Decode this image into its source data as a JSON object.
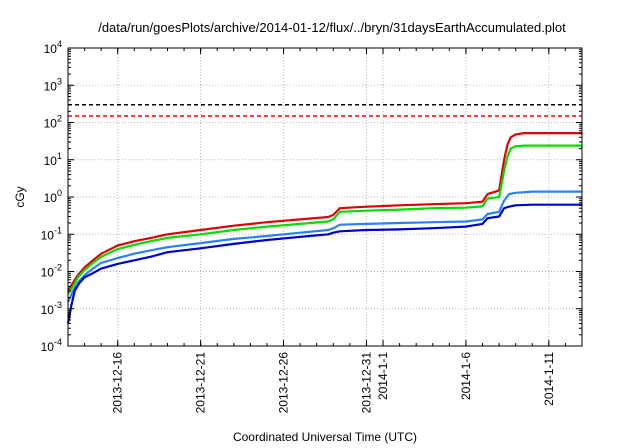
{
  "chart_data": {
    "type": "line",
    "title": "/data/run/goesPlots/archive/2014-01-12/flux/../bryn/31daysEarthAccumulated.plot",
    "xlabel": "Coordinated Universal Time (UTC)",
    "ylabel": "cGy",
    "yscale": "log",
    "ylim": [
      0.0001,
      10000
    ],
    "xlim_days": [
      0,
      31
    ],
    "grid": true,
    "y_ticks": [
      {
        "mantissa": "10",
        "exp": "-4",
        "value": 0.0001
      },
      {
        "mantissa": "10",
        "exp": "-3",
        "value": 0.001
      },
      {
        "mantissa": "10",
        "exp": "-2",
        "value": 0.01
      },
      {
        "mantissa": "10",
        "exp": "-1",
        "value": 0.1
      },
      {
        "mantissa": "10",
        "exp": "0",
        "value": 1
      },
      {
        "mantissa": "10",
        "exp": "1",
        "value": 10
      },
      {
        "mantissa": "10",
        "exp": "2",
        "value": 100
      },
      {
        "mantissa": "10",
        "exp": "3",
        "value": 1000
      },
      {
        "mantissa": "10",
        "exp": "4",
        "value": 10000
      }
    ],
    "x_ticks": [
      {
        "label": "2013-12-16",
        "day": 3
      },
      {
        "label": "2013-12-21",
        "day": 8
      },
      {
        "label": "2013-12-26",
        "day": 13
      },
      {
        "label": "2013-12-31",
        "day": 18
      },
      {
        "label": "2014-1-1",
        "day": 19
      },
      {
        "label": "2014-1-6",
        "day": 24
      },
      {
        "label": "2014-1-11",
        "day": 29
      }
    ],
    "reference_lines": [
      {
        "name": "black-threshold",
        "value": 300,
        "color": "#000000"
      },
      {
        "name": "red-threshold",
        "value": 150,
        "color": "#ff0000"
      }
    ],
    "series": [
      {
        "name": "red",
        "color": "#e00000",
        "x": [
          0,
          0.3,
          0.6,
          1,
          1.5,
          2,
          3,
          4,
          5,
          6,
          8,
          10,
          12,
          14,
          15.7,
          16,
          16.4,
          18,
          20,
          22,
          24,
          25,
          25.3,
          26,
          26.3,
          26.5,
          26.7,
          27,
          27.5,
          28,
          31
        ],
        "values": [
          0.003,
          0.005,
          0.008,
          0.013,
          0.02,
          0.03,
          0.05,
          0.065,
          0.08,
          0.1,
          0.13,
          0.17,
          0.21,
          0.25,
          0.29,
          0.33,
          0.5,
          0.55,
          0.6,
          0.64,
          0.68,
          0.75,
          1.2,
          1.5,
          10,
          25,
          40,
          48,
          52,
          52,
          52
        ]
      },
      {
        "name": "green",
        "color": "#00dd00",
        "x": [
          0,
          0.3,
          0.6,
          1,
          1.5,
          2,
          3,
          4,
          5,
          6,
          8,
          10,
          12,
          14,
          15.7,
          16,
          16.4,
          18,
          20,
          22,
          24,
          25,
          25.3,
          26,
          26.3,
          26.5,
          26.7,
          27,
          27.5,
          28,
          31
        ],
        "values": [
          0.0025,
          0.004,
          0.007,
          0.011,
          0.017,
          0.025,
          0.04,
          0.052,
          0.065,
          0.08,
          0.1,
          0.13,
          0.16,
          0.19,
          0.22,
          0.25,
          0.4,
          0.43,
          0.46,
          0.5,
          0.52,
          0.56,
          0.9,
          1.0,
          5,
          12,
          20,
          23,
          24,
          24,
          24
        ]
      },
      {
        "name": "light-blue",
        "color": "#2a7fff",
        "x": [
          0,
          0.3,
          0.6,
          1,
          1.5,
          2,
          3,
          4,
          5,
          6,
          8,
          10,
          12,
          14,
          15.7,
          16,
          16.4,
          18,
          20,
          22,
          24,
          25,
          25.3,
          26,
          26.3,
          26.6,
          27,
          28,
          31
        ],
        "values": [
          0.0015,
          0.003,
          0.005,
          0.008,
          0.012,
          0.017,
          0.023,
          0.03,
          0.037,
          0.045,
          0.058,
          0.075,
          0.09,
          0.11,
          0.13,
          0.145,
          0.18,
          0.19,
          0.2,
          0.21,
          0.22,
          0.25,
          0.35,
          0.4,
          0.8,
          1.2,
          1.3,
          1.4,
          1.4
        ]
      },
      {
        "name": "dark-blue",
        "color": "#0000cc",
        "x": [
          0,
          0.2,
          0.4,
          0.7,
          1,
          1.5,
          2,
          3,
          4,
          5,
          6,
          8,
          10,
          12,
          14,
          15.7,
          16,
          16.4,
          18,
          20,
          22,
          24,
          25,
          25.3,
          26,
          26.3,
          26.6,
          27,
          28,
          31
        ],
        "values": [
          0.0004,
          0.0012,
          0.003,
          0.005,
          0.007,
          0.009,
          0.012,
          0.016,
          0.02,
          0.025,
          0.033,
          0.042,
          0.055,
          0.07,
          0.085,
          0.1,
          0.11,
          0.12,
          0.13,
          0.135,
          0.145,
          0.16,
          0.19,
          0.27,
          0.3,
          0.5,
          0.55,
          0.6,
          0.62,
          0.62
        ]
      }
    ]
  }
}
